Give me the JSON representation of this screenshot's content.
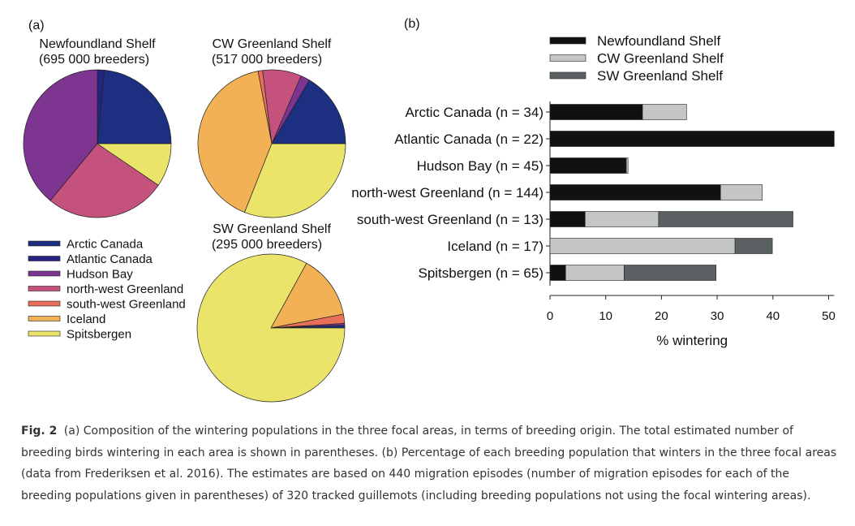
{
  "panel_labels": {
    "a": "(a)",
    "b": "(b)"
  },
  "colors": {
    "Arctic Canada": "#1c2f80",
    "Atlantic Canada": "#262480",
    "Hudson Bay": "#7d3591",
    "north-west Greenland": "#c5527d",
    "south-west Greenland": "#e8705a",
    "Iceland": "#f2b155",
    "Spitsbergen": "#ebe46a",
    "Newfoundland Shelf": "#111111",
    "CW Greenland Shelf": "#c4c6c6",
    "SW Greenland Shelf": "#5b6162"
  },
  "chart_data": [
    {
      "type": "pie",
      "title": "Newfoundland Shelf",
      "subtitle": "(695 000 breeders)",
      "labels": [
        "Arctic Canada",
        "Atlantic Canada",
        "Hudson Bay",
        "north-west Greenland",
        "south-west Greenland",
        "Iceland",
        "Spitsbergen"
      ],
      "values": [
        23.5,
        1.5,
        39,
        26.5,
        0,
        0,
        9.5
      ]
    },
    {
      "type": "pie",
      "title": "CW Greenland Shelf",
      "subtitle": "(517 000 breeders)",
      "labels": [
        "Arctic Canada",
        "Atlantic Canada",
        "Hudson Bay",
        "north-west Greenland",
        "south-west Greenland",
        "Iceland",
        "Spitsbergen"
      ],
      "values": [
        16.5,
        0,
        2,
        8.5,
        1,
        41,
        31
      ]
    },
    {
      "type": "pie",
      "title": "SW Greenland Shelf",
      "subtitle": "(295 000 breeders)",
      "labels": [
        "Arctic Canada",
        "Atlantic Canada",
        "Hudson Bay",
        "north-west Greenland",
        "south-west Greenland",
        "Iceland",
        "Spitsbergen"
      ],
      "values": [
        0.6,
        0,
        0.4,
        0,
        2,
        14,
        83
      ]
    },
    {
      "type": "bar",
      "orientation": "horizontal",
      "stacked": true,
      "categories": [
        "Arctic Canada (n = 34)",
        "Atlantic Canada (n = 22)",
        "Hudson Bay (n = 45)",
        "north-west Greenland (n = 144)",
        "south-west Greenland (n = 13)",
        "Iceland (n = 17)",
        "Spitsbergen (n = 65)"
      ],
      "series": [
        {
          "name": "Newfoundland Shelf",
          "values": [
            16.6,
            51,
            13.7,
            30.6,
            6.3,
            0,
            2.8
          ]
        },
        {
          "name": "CW Greenland Shelf",
          "values": [
            7.9,
            0,
            0.3,
            7.5,
            13.2,
            33.2,
            10.5
          ]
        },
        {
          "name": "SW Greenland Shelf",
          "values": [
            0,
            0,
            0,
            0,
            24.1,
            6.7,
            16.5
          ]
        }
      ],
      "xlabel": "% wintering",
      "ylabel": "",
      "xlim": [
        0,
        51
      ],
      "xticks": [
        "0",
        "10",
        "20",
        "30",
        "40",
        "50"
      ]
    }
  ],
  "pie_legend": [
    "Arctic Canada",
    "Atlantic Canada",
    "Hudson Bay",
    "north-west Greenland",
    "south-west Greenland",
    "Iceland",
    "Spitsbergen"
  ],
  "caption": {
    "label": "Fig. 2",
    "text": "(a) Composition of the wintering populations in the three focal areas, in terms of breeding origin. The total estimated number of breeding birds wintering in each area is shown in parentheses. (b) Percentage of each breeding population that winters in the three focal areas (data from Frederiksen et al. 2016). The estimates are based on 440 migration episodes (number of migration episodes for each of the breeding populations given in parentheses) of 320 tracked guillemots (including breeding populations not using the focal wintering areas)."
  }
}
